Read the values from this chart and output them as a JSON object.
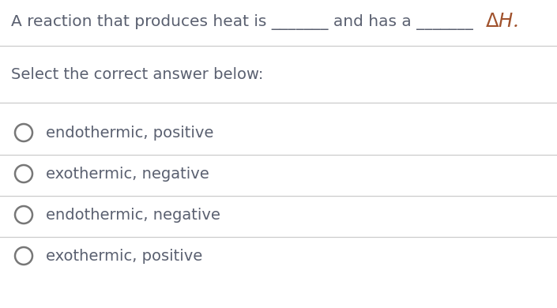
{
  "background_color": "#ffffff",
  "question_line1": "A reaction that produces heat is _______ and has a _______",
  "question_dh": "ΔH.",
  "question_text_color": "#5a6070",
  "question_dh_color": "#a0522d",
  "select_label": "Select the correct answer below:",
  "select_label_color": "#5a6070",
  "options": [
    "endothermic, positive",
    "exothermic, negative",
    "endothermic, negative",
    "exothermic, positive"
  ],
  "option_color": "#5a6070",
  "divider_color": "#cccccc",
  "circle_edge_color": "#777777",
  "question_fontsize": 14.5,
  "label_fontsize": 14,
  "option_fontsize": 14,
  "fig_width": 7.05,
  "fig_height": 3.9,
  "dpi": 100
}
